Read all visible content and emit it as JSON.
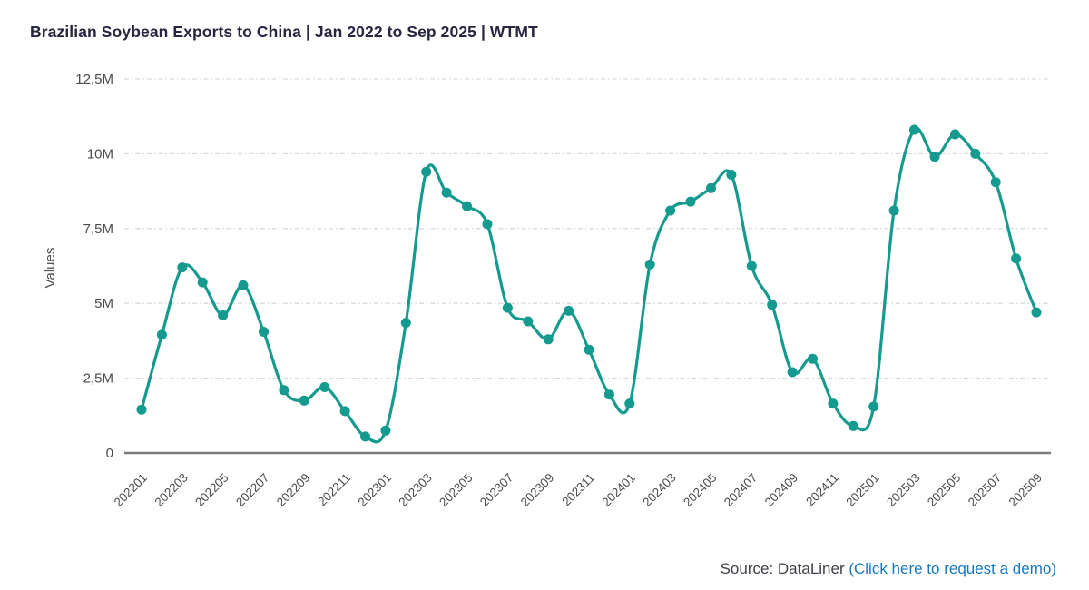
{
  "title": "Brazilian Soybean Exports to China | Jan 2022 to Sep 2025 | WTMT",
  "footer": {
    "source_prefix": "Source: DataLiner ",
    "link_text": "(Click here to request a demo)"
  },
  "colors": {
    "line": "#149a8e",
    "marker": "#149a8e",
    "title_text": "#272640",
    "axis_text": "#4a4a4a",
    "gridline": "#d9d9d9",
    "axis_line": "#7a7a7a",
    "source_text": "#3f3f46",
    "link": "#1878be"
  },
  "chart_data": {
    "type": "line",
    "title": "Brazilian Soybean Exports to China | Jan 2022 to Sep 2025 | WTMT",
    "xlabel": "",
    "ylabel": "Values",
    "unit": "M",
    "ylim": [
      0,
      12.5
    ],
    "yticks": [
      0,
      2.5,
      5,
      7.5,
      10,
      12.5
    ],
    "ytick_labels": [
      "0",
      "2,5M",
      "5M",
      "7,5M",
      "10M",
      "12,5M"
    ],
    "xtick_every": 2,
    "grid": "horizontal-dashed",
    "legend": "none",
    "marker": "circle",
    "smooth": true,
    "x": [
      "202201",
      "202202",
      "202203",
      "202204",
      "202205",
      "202206",
      "202207",
      "202208",
      "202209",
      "202210",
      "202211",
      "202212",
      "202301",
      "202302",
      "202303",
      "202304",
      "202305",
      "202306",
      "202307",
      "202308",
      "202309",
      "202310",
      "202311",
      "202312",
      "202401",
      "202402",
      "202403",
      "202404",
      "202405",
      "202406",
      "202407",
      "202408",
      "202409",
      "202410",
      "202411",
      "202412",
      "202501",
      "202502",
      "202503",
      "202504",
      "202505",
      "202506",
      "202507",
      "202508",
      "202509"
    ],
    "values": [
      1.45,
      3.95,
      6.2,
      5.7,
      4.6,
      5.6,
      4.05,
      2.1,
      1.75,
      2.2,
      1.4,
      0.55,
      0.75,
      4.35,
      9.4,
      8.7,
      8.25,
      7.65,
      4.85,
      4.4,
      3.8,
      4.75,
      3.45,
      1.95,
      1.65,
      6.3,
      8.1,
      8.4,
      8.85,
      9.3,
      6.25,
      4.95,
      2.7,
      3.15,
      1.65,
      0.9,
      1.55,
      8.1,
      10.8,
      9.9,
      10.65,
      10.0,
      9.05,
      6.5,
      4.7
    ]
  }
}
